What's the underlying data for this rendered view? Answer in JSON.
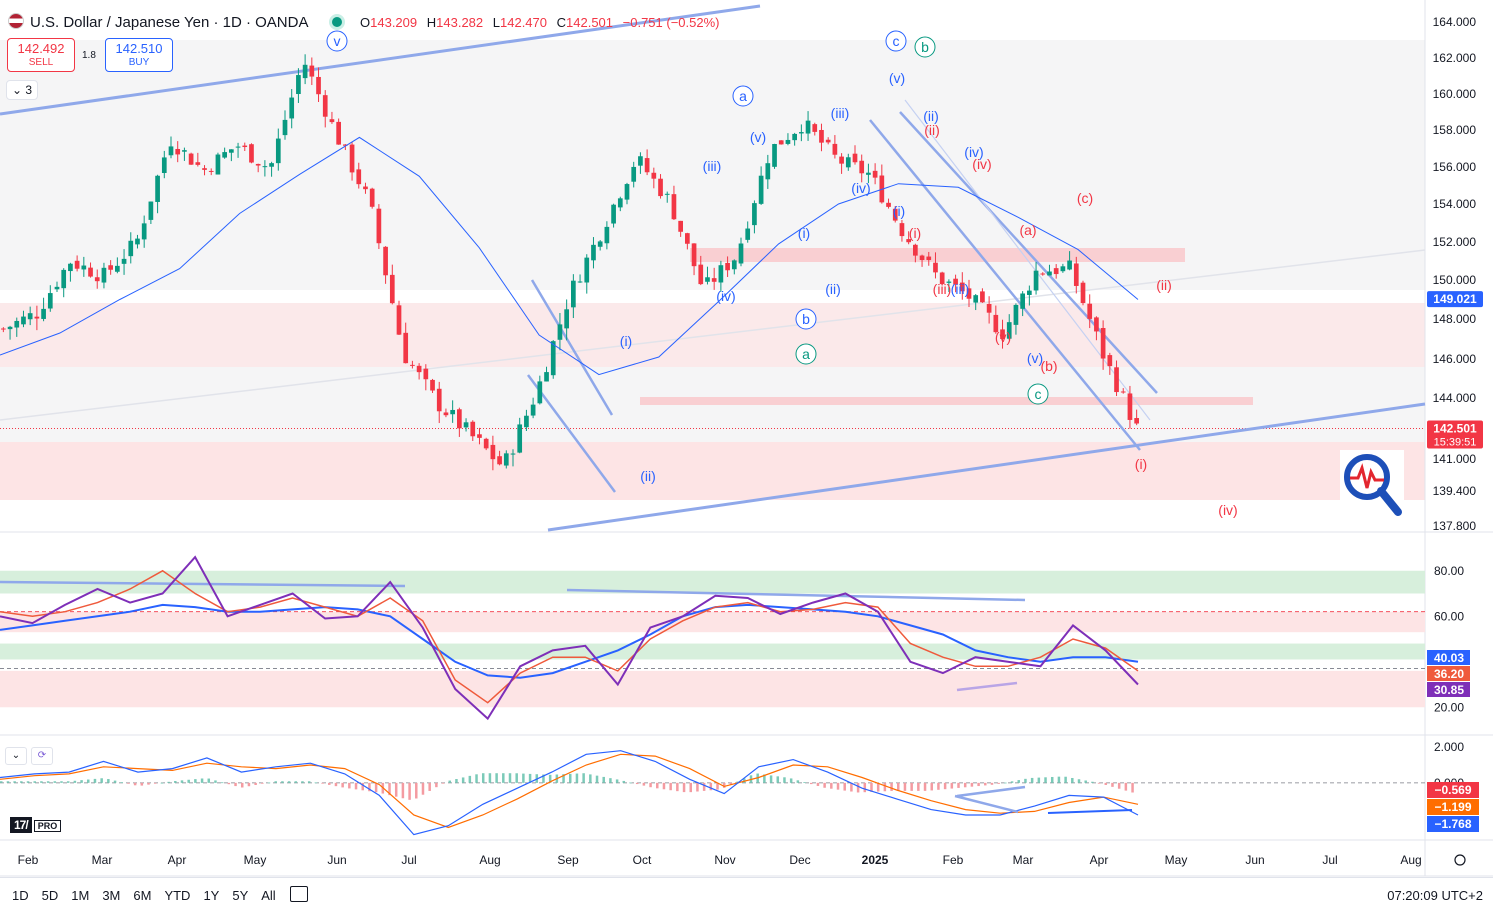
{
  "header": {
    "symbol": "U.S. Dollar / Japanese Yen · 1D · OANDA",
    "open_label": "O",
    "open": "143.209",
    "high_label": "H",
    "high": "143.282",
    "low_label": "L",
    "low": "142.470",
    "close_label": "C",
    "close": "142.501",
    "change": "−0.751 (−0.52%)",
    "collapse_label": "3"
  },
  "trade": {
    "sell_price": "142.492",
    "sell_label": "SELL",
    "spread": "1.8",
    "buy_price": "142.510",
    "buy_label": "BUY"
  },
  "colors": {
    "up": "#089981",
    "down": "#f23645",
    "wave_blue": "#2962ff",
    "wave_red": "#f23645",
    "wave_green": "#089981",
    "trendline": "#8fa8ea",
    "rsi": "#7e2fb8",
    "rsi_ma_fast": "#ef5a3c",
    "rsi_ma_slow": "#2962ff",
    "macd": "#2962ff",
    "signal": "#ff6d00"
  },
  "chart_data": [
    {
      "type": "candlestick",
      "panel": "price",
      "ylim": [
        136.8,
        165.0
      ],
      "y_ticks": [
        "164.000",
        "162.000",
        "160.000",
        "158.000",
        "156.000",
        "154.000",
        "152.000",
        "150.000",
        "148.000",
        "146.000",
        "144.000",
        "141.000",
        "139.400",
        "137.800"
      ],
      "x_labels": [
        "Feb",
        "Mar",
        "Apr",
        "May",
        "Jun",
        "Jul",
        "Aug",
        "Sep",
        "Oct",
        "Nov",
        "Dec",
        "2025",
        "Feb",
        "Mar",
        "Apr",
        "May",
        "Jun",
        "Jul",
        "Aug"
      ],
      "series_path": [
        [
          147.5,
          148.3,
          151.0,
          150.2,
          152.0,
          157.5,
          155.8,
          157.2,
          155.9,
          161.9,
          157.7,
          154.0,
          146.3,
          143.8,
          142.2,
          140.6,
          144.3,
          149.3,
          152.8,
          156.5,
          154.1,
          149.5,
          151.3,
          156.9,
          158.4,
          156.4,
          155.6,
          152.5,
          150.2,
          149.1,
          147.3,
          150.5,
          150.6,
          146.2,
          142.5
        ]
      ],
      "ma_path": [
        146.2,
        147.3,
        149.0,
        150.6,
        153.5,
        155.6,
        157.6,
        155.5,
        151.7,
        147.2,
        145.2,
        146.1,
        148.9,
        151.9,
        154.0,
        155.1,
        154.9,
        153.3,
        151.6,
        149.0
      ],
      "price_labels": [
        {
          "value": "149.021",
          "color": "#2962ff",
          "price": 149.021
        },
        {
          "value": "142.501",
          "sub": "15:39:51",
          "color": "#f23645",
          "price": 142.501
        }
      ],
      "waves": [
        {
          "t": "v",
          "c": "blue",
          "circle": true
        },
        {
          "t": "a",
          "c": "blue",
          "circle": true
        },
        {
          "t": "b",
          "c": "blue",
          "circle": true
        },
        {
          "t": "c",
          "c": "blue",
          "circle": true
        },
        {
          "t": "b",
          "c": "green",
          "circle": true
        },
        {
          "t": "a",
          "c": "green",
          "circle": true
        },
        {
          "t": "c",
          "c": "green",
          "circle": true
        },
        {
          "t": "(i)",
          "c": "blue"
        },
        {
          "t": "(ii)",
          "c": "blue"
        },
        {
          "t": "(iii)",
          "c": "blue"
        },
        {
          "t": "(iv)",
          "c": "blue"
        },
        {
          "t": "(v)",
          "c": "blue"
        },
        {
          "t": "(i)",
          "c": "blue"
        },
        {
          "t": "(ii)",
          "c": "blue"
        },
        {
          "t": "(iii)",
          "c": "blue"
        },
        {
          "t": "(iv)",
          "c": "blue"
        },
        {
          "t": "(v)",
          "c": "blue"
        },
        {
          "t": "(i)",
          "c": "blue"
        },
        {
          "t": "(ii)",
          "c": "blue"
        },
        {
          "t": "(iii)",
          "c": "blue"
        },
        {
          "t": "(iv)",
          "c": "blue"
        },
        {
          "t": "(v)",
          "c": "blue"
        },
        {
          "t": "(i)",
          "c": "red"
        },
        {
          "t": "(ii)",
          "c": "red"
        },
        {
          "t": "(iii)",
          "c": "red"
        },
        {
          "t": "(iv)",
          "c": "red"
        },
        {
          "t": "(v)",
          "c": "red"
        },
        {
          "t": "(a)",
          "c": "red"
        },
        {
          "t": "(b)",
          "c": "red"
        },
        {
          "t": "(c)",
          "c": "red"
        },
        {
          "t": "(i)",
          "c": "red"
        },
        {
          "t": "(ii)",
          "c": "red"
        },
        {
          "t": "(iv)",
          "c": "red"
        }
      ]
    },
    {
      "type": "line",
      "panel": "rsi",
      "ylim": [
        10,
        90
      ],
      "y_ticks": [
        "80.00",
        "60.00",
        "20.00"
      ],
      "levels": [
        70,
        60,
        50,
        30
      ],
      "series_path": [
        [
          60,
          57,
          65,
          72,
          66,
          70,
          86,
          60,
          65,
          70,
          59,
          60,
          75,
          55,
          28,
          15,
          38,
          45,
          47,
          30,
          55,
          60,
          69,
          68,
          61,
          66,
          70,
          62,
          40,
          35,
          42,
          40,
          38,
          56,
          45,
          30
        ]
      ],
      "ma_fast_path": [
        62,
        60,
        62,
        66,
        72,
        80,
        70,
        62,
        64,
        68,
        64,
        60,
        68,
        58,
        32,
        22,
        35,
        42,
        42,
        36,
        50,
        58,
        64,
        66,
        62,
        63,
        66,
        64,
        48,
        42,
        38,
        38,
        42,
        50,
        46,
        36
      ],
      "ma_slow_path": [
        54,
        56,
        58,
        60,
        62,
        65,
        64,
        62,
        62,
        63,
        64,
        63,
        60,
        50,
        40,
        34,
        33,
        35,
        40,
        45,
        52,
        60,
        64,
        65,
        64,
        63,
        62,
        60,
        56,
        52,
        45,
        42,
        40,
        42,
        42,
        40
      ],
      "price_labels": [
        {
          "value": "40.03",
          "color": "#2962ff",
          "level": 40.03
        },
        {
          "value": "36.20",
          "color": "#ef5a3c",
          "level": 36.2
        },
        {
          "value": "30.85",
          "color": "#7e2fb8",
          "level": 30.85
        }
      ]
    },
    {
      "type": "bar",
      "panel": "macd",
      "ylim": [
        -3.2,
        2.4
      ],
      "y_ticks": [
        "2.000",
        "0.000"
      ],
      "macd_path": [
        0.3,
        0.5,
        0.6,
        1.2,
        0.6,
        0.8,
        1.4,
        0.6,
        0.9,
        1.1,
        0.5,
        -0.7,
        -2.9,
        -2.4,
        -1.2,
        -0.3,
        0.6,
        1.6,
        1.8,
        1.2,
        0.2,
        -0.6,
        0.9,
        1.3,
        0.6,
        -0.3,
        -0.9,
        -1.5,
        -1.8,
        -1.8,
        -1.3,
        -0.7,
        -0.8,
        -1.8
      ],
      "signal_path": [
        0.2,
        0.4,
        0.5,
        0.9,
        0.8,
        0.7,
        1.1,
        0.9,
        0.8,
        1.0,
        0.8,
        -0.1,
        -1.8,
        -2.5,
        -1.8,
        -0.9,
        0.1,
        1.0,
        1.6,
        1.5,
        0.8,
        -0.2,
        0.3,
        1.0,
        0.9,
        0.3,
        -0.4,
        -1.0,
        -1.5,
        -1.7,
        -1.6,
        -1.1,
        -0.8,
        -1.2
      ],
      "price_labels": [
        {
          "value": "−0.569",
          "color": "#f23645",
          "level": -0.569
        },
        {
          "value": "−1.199",
          "color": "#ff6d00",
          "level": -1.199
        },
        {
          "value": "−1.768",
          "color": "#2962ff",
          "level": -1.768
        }
      ]
    }
  ],
  "ranges": [
    "1D",
    "5D",
    "1M",
    "3M",
    "6M",
    "YTD",
    "1Y",
    "5Y",
    "All"
  ],
  "clock": "07:20:09 UTC+2",
  "logo_pro": "PRO"
}
